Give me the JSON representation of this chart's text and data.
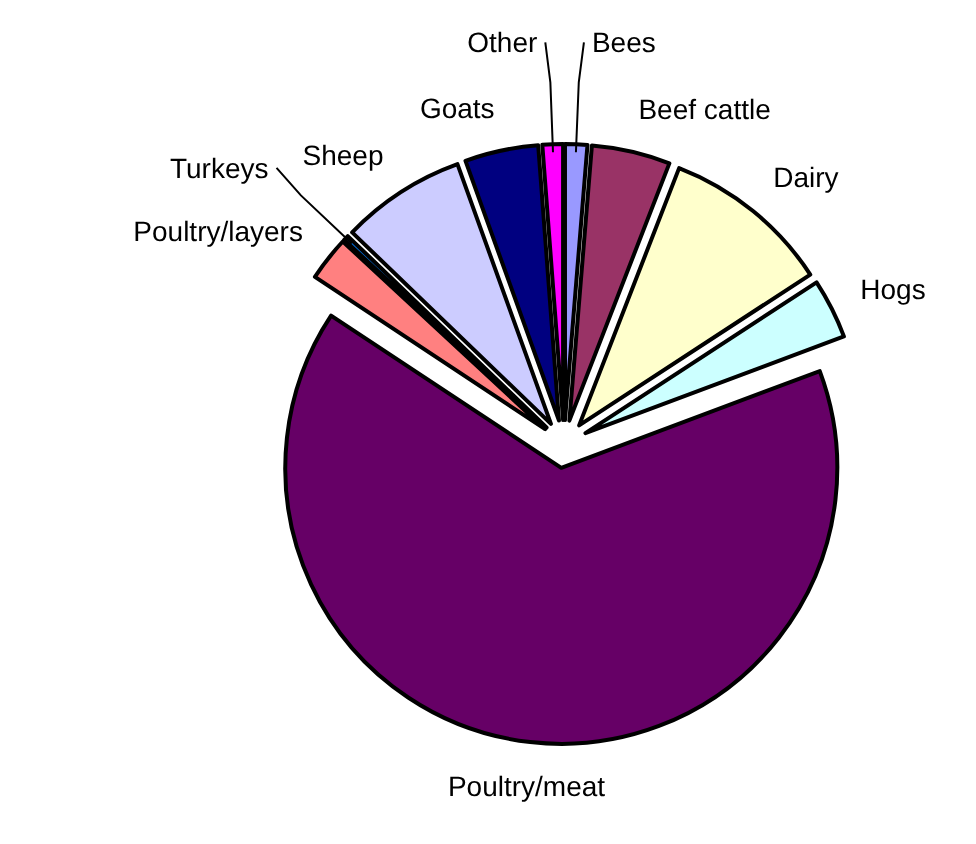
{
  "chart_data": {
    "type": "pie",
    "categories": [
      "Bees",
      "Beef cattle",
      "Dairy",
      "Hogs",
      "Poultry/meat",
      "Poultry/layers",
      "Turkeys",
      "Sheep",
      "Goats",
      "Other"
    ],
    "values": [
      1.3,
      4.6,
      9.9,
      3.5,
      65.0,
      2.6,
      0.3,
      7.3,
      4.3,
      1.2
    ],
    "colors": [
      "#9999ff",
      "#993366",
      "#ffffcc",
      "#ccffff",
      "#660066",
      "#ff8080",
      "#0066cc",
      "#ccccff",
      "#000080",
      "#ff00ff"
    ]
  }
}
